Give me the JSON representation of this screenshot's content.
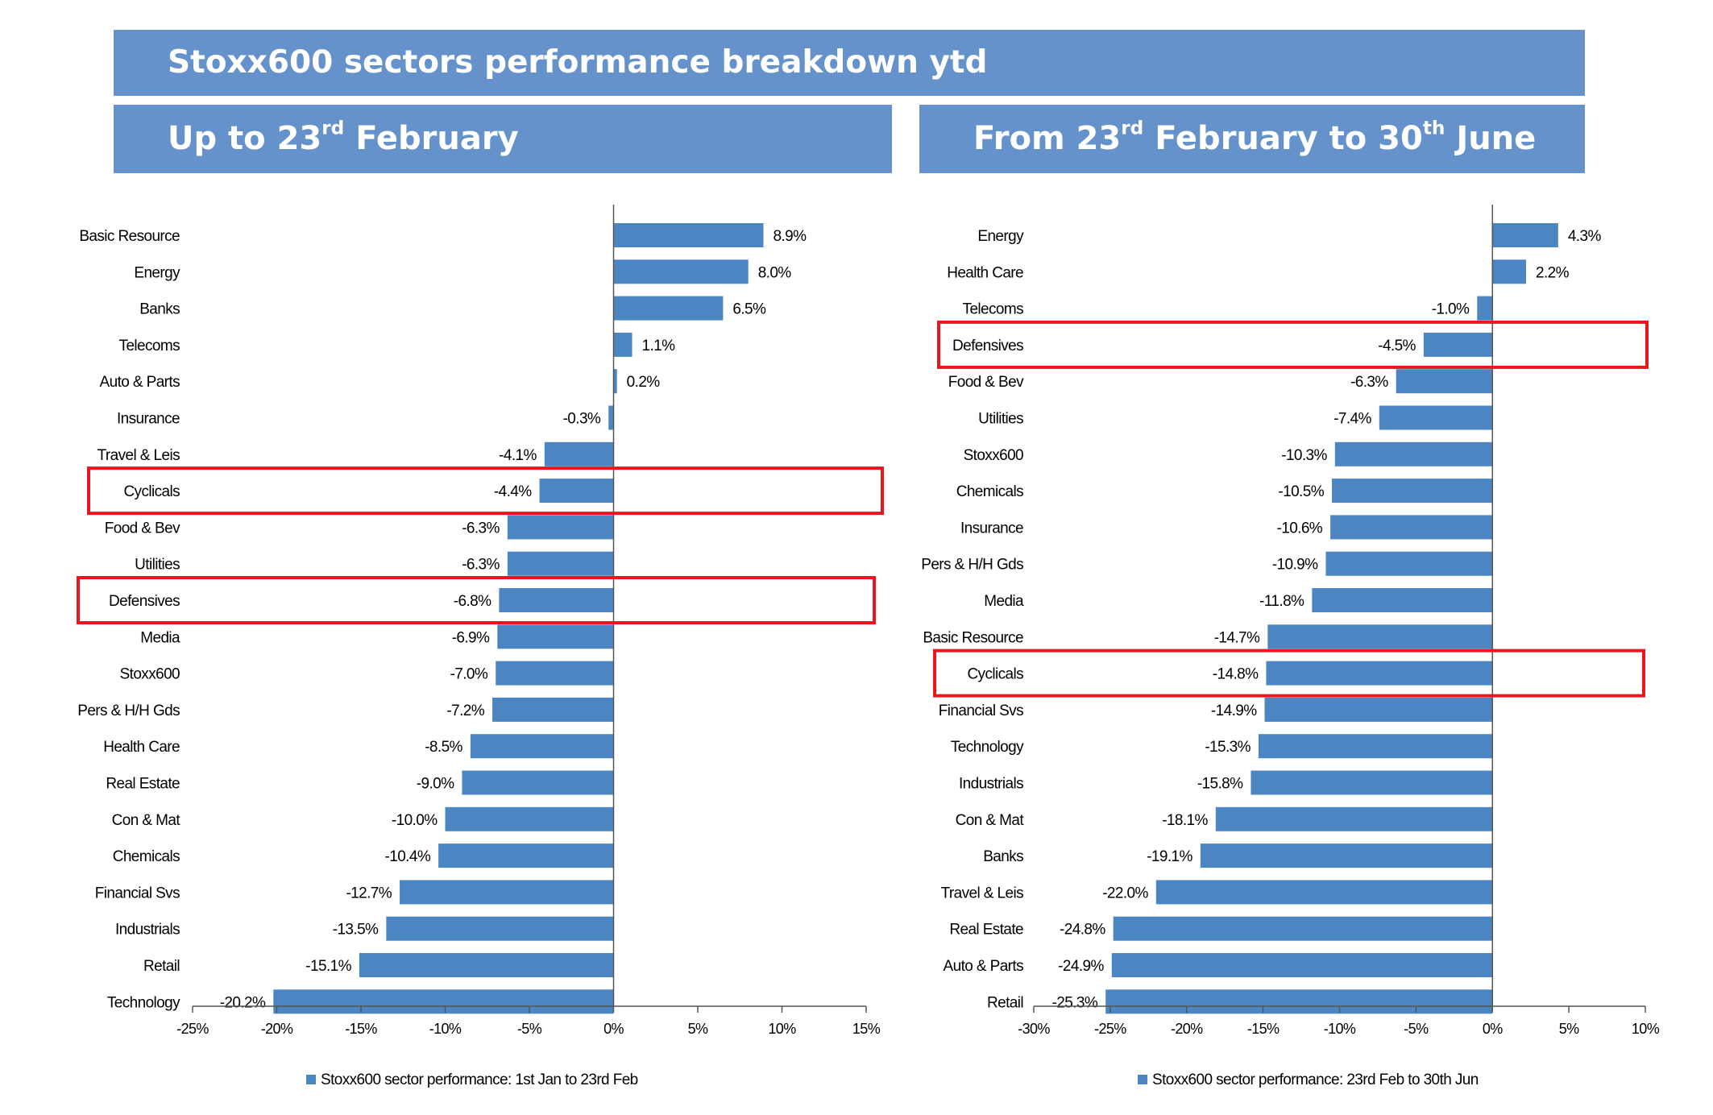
{
  "title": "Stoxx600 sectors performance breakdown ytd",
  "panels": [
    {
      "pre": "Up to 23",
      "sup": "rd",
      "post": " February"
    },
    {
      "pre": "From 23",
      "sup": "rd",
      "mid": " February to 30",
      "sup2": "th",
      "post": " June"
    }
  ],
  "colors": {
    "bar": "#4b86c2",
    "banner": "#6592cb",
    "highlight": "#e8171f"
  },
  "chart_data": [
    {
      "type": "bar",
      "orientation": "horizontal",
      "categories": [
        "Basic Resource",
        "Energy",
        "Banks",
        "Telecoms",
        "Auto & Parts",
        "Insurance",
        "Travel & Leis",
        "Cyclicals",
        "Food & Bev",
        "Utilities",
        "Defensives",
        "Media",
        "Stoxx600",
        "Pers & H/H Gds",
        "Health Care",
        "Real Estate",
        "Con & Mat",
        "Chemicals",
        "Financial Svs",
        "Industrials",
        "Retail",
        "Technology"
      ],
      "values": [
        8.9,
        8.0,
        6.5,
        1.1,
        0.2,
        -0.3,
        -4.1,
        -4.4,
        -6.3,
        -6.3,
        -6.8,
        -6.9,
        -7.0,
        -7.2,
        -8.5,
        -9.0,
        -10.0,
        -10.4,
        -12.7,
        -13.5,
        -15.1,
        -20.2
      ],
      "labels": [
        "8.9%",
        "8.0%",
        "6.5%",
        "1.1%",
        "0.2%",
        "-0.3%",
        "-4.1%",
        "-4.4%",
        "-6.3%",
        "-6.3%",
        "-6.8%",
        "-6.9%",
        "-7.0%",
        "-7.2%",
        "-8.5%",
        "-9.0%",
        "-10.0%",
        "-10.4%",
        "-12.7%",
        "-13.5%",
        "-15.1%",
        "-20.2%"
      ],
      "xlim": [
        -25,
        15
      ],
      "xticks": [
        -25,
        -20,
        -15,
        -10,
        -5,
        0,
        5,
        10,
        15
      ],
      "xtick_labels": [
        "-25%",
        "-20%",
        "-15%",
        "-10%",
        "-5%",
        "0%",
        "5%",
        "10%",
        "15%"
      ],
      "highlighted": [
        "Cyclicals",
        "Defensives"
      ],
      "legend": "Stoxx600 sector performance: 1st Jan to 23rd Feb",
      "legend_position": "bottom",
      "grid": false
    },
    {
      "type": "bar",
      "orientation": "horizontal",
      "categories": [
        "Energy",
        "Health Care",
        "Telecoms",
        "Defensives",
        "Food & Bev",
        "Utilities",
        "Stoxx600",
        "Chemicals",
        "Insurance",
        "Pers & H/H Gds",
        "Media",
        "Basic Resource",
        "Cyclicals",
        "Financial Svs",
        "Technology",
        "Industrials",
        "Con & Mat",
        "Banks",
        "Travel & Leis",
        "Real Estate",
        "Auto & Parts",
        "Retail"
      ],
      "values": [
        4.3,
        2.2,
        -1.0,
        -4.5,
        -6.3,
        -7.4,
        -10.3,
        -10.5,
        -10.6,
        -10.9,
        -11.8,
        -14.7,
        -14.8,
        -14.9,
        -15.3,
        -15.8,
        -18.1,
        -19.1,
        -22.0,
        -24.8,
        -24.9,
        -25.3
      ],
      "labels": [
        "4.3%",
        "2.2%",
        "-1.0%",
        "-4.5%",
        "-6.3%",
        "-7.4%",
        "-10.3%",
        "-10.5%",
        "-10.6%",
        "-10.9%",
        "-11.8%",
        "-14.7%",
        "-14.8%",
        "-14.9%",
        "-15.3%",
        "-15.8%",
        "-18.1%",
        "-19.1%",
        "-22.0%",
        "-24.8%",
        "-24.9%",
        "-25.3%"
      ],
      "xlim": [
        -30,
        10
      ],
      "xticks": [
        -30,
        -25,
        -20,
        -15,
        -10,
        -5,
        0,
        5,
        10
      ],
      "xtick_labels": [
        "-30%",
        "-25%",
        "-20%",
        "-15%",
        "-10%",
        "-5%",
        "0%",
        "5%",
        "10%"
      ],
      "highlighted": [
        "Defensives",
        "Cyclicals"
      ],
      "legend": "Stoxx600 sector performance: 23rd Feb to 30th Jun",
      "legend_position": "bottom",
      "grid": false
    }
  ]
}
